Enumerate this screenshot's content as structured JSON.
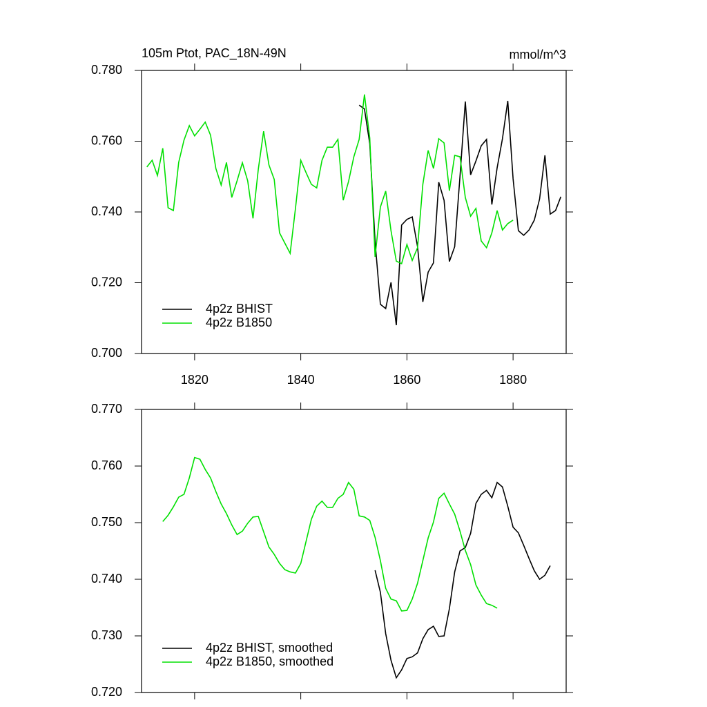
{
  "chart_data": [
    {
      "type": "line",
      "title": "105m Ptot, PAC_18N-49N",
      "subtitle": "mmol/m^3",
      "xlim": [
        1810,
        1890
      ],
      "xticks": [
        1820,
        1840,
        1860,
        1880
      ],
      "xticklabels": true,
      "ylim": [
        0.7,
        0.78
      ],
      "yticks": [
        {
          "value": 0.7,
          "label": "0.700"
        },
        {
          "value": 0.72,
          "label": "0.720"
        },
        {
          "value": 0.74,
          "label": "0.740"
        },
        {
          "value": 0.76,
          "label": "0.760"
        },
        {
          "value": 0.78,
          "label": "0.780"
        }
      ],
      "legend": "lower left",
      "series": [
        {
          "name": "4p2z BHIST",
          "color": "#000000",
          "x": [
            1851,
            1852,
            1853,
            1854,
            1855,
            1856,
            1857,
            1858,
            1859,
            1860,
            1861,
            1862,
            1863,
            1864,
            1865,
            1866,
            1867,
            1868,
            1869,
            1870,
            1871,
            1872,
            1873,
            1874,
            1875,
            1876,
            1877,
            1878,
            1879,
            1880,
            1881,
            1882,
            1883,
            1884,
            1885,
            1886,
            1887,
            1888,
            1889
          ],
          "values": [
            0.7702,
            0.7691,
            0.7593,
            0.7316,
            0.7139,
            0.7127,
            0.7201,
            0.708,
            0.7363,
            0.7379,
            0.7386,
            0.7302,
            0.7146,
            0.723,
            0.7256,
            0.7484,
            0.7433,
            0.726,
            0.7302,
            0.7501,
            0.7712,
            0.7505,
            0.7544,
            0.7587,
            0.7605,
            0.7421,
            0.7525,
            0.7607,
            0.7714,
            0.7494,
            0.7347,
            0.7334,
            0.7349,
            0.7377,
            0.7437,
            0.756,
            0.7394,
            0.7404,
            0.7443
          ]
        },
        {
          "name": "4p2z B1850",
          "color": "#00e000",
          "x": [
            1811,
            1812,
            1813,
            1814,
            1815,
            1816,
            1817,
            1818,
            1819,
            1820,
            1821,
            1822,
            1823,
            1824,
            1825,
            1826,
            1827,
            1828,
            1829,
            1830,
            1831,
            1832,
            1833,
            1834,
            1835,
            1836,
            1837,
            1838,
            1839,
            1840,
            1841,
            1842,
            1843,
            1844,
            1845,
            1846,
            1847,
            1848,
            1849,
            1850,
            1851,
            1852,
            1853,
            1854,
            1855,
            1856,
            1857,
            1858,
            1859,
            1860,
            1861,
            1862,
            1863,
            1864,
            1865,
            1866,
            1867,
            1868,
            1869,
            1870,
            1871,
            1872,
            1873,
            1874,
            1875,
            1876,
            1877,
            1878,
            1879,
            1880
          ],
          "values": [
            0.7527,
            0.7546,
            0.7503,
            0.758,
            0.7412,
            0.7404,
            0.754,
            0.7603,
            0.7644,
            0.7615,
            0.7634,
            0.7654,
            0.7617,
            0.7523,
            0.7476,
            0.754,
            0.7441,
            0.7488,
            0.7539,
            0.7488,
            0.7382,
            0.7521,
            0.7628,
            0.7533,
            0.7492,
            0.7341,
            0.7312,
            0.7283,
            0.741,
            0.7546,
            0.7511,
            0.7478,
            0.7468,
            0.7546,
            0.7583,
            0.7583,
            0.7605,
            0.7433,
            0.7486,
            0.7556,
            0.7605,
            0.7732,
            0.7609,
            0.7273,
            0.7414,
            0.7459,
            0.7347,
            0.7261,
            0.7254,
            0.7308,
            0.7263,
            0.7299,
            0.7478,
            0.7574,
            0.7523,
            0.7607,
            0.7595,
            0.746,
            0.756,
            0.7556,
            0.7441,
            0.7388,
            0.741,
            0.7318,
            0.7299,
            0.7341,
            0.7404,
            0.7349,
            0.7367,
            0.7377
          ]
        }
      ]
    },
    {
      "type": "line",
      "xlim": [
        1810,
        1890
      ],
      "xticks": [
        1820,
        1840,
        1860,
        1880
      ],
      "xticklabels": false,
      "ylim": [
        0.72,
        0.77
      ],
      "yticks": [
        {
          "value": 0.72,
          "label": "0.720"
        },
        {
          "value": 0.73,
          "label": "0.730"
        },
        {
          "value": 0.74,
          "label": "0.740"
        },
        {
          "value": 0.75,
          "label": "0.750"
        },
        {
          "value": 0.76,
          "label": "0.760"
        },
        {
          "value": 0.77,
          "label": "0.770"
        }
      ],
      "legend": "lower left",
      "series": [
        {
          "name": "4p2z BHIST, smoothed",
          "color": "#000000",
          "x": [
            1854,
            1855,
            1856,
            1857,
            1858,
            1859,
            1860,
            1861,
            1862,
            1863,
            1864,
            1865,
            1866,
            1867,
            1868,
            1869,
            1870,
            1871,
            1872,
            1873,
            1874,
            1875,
            1876,
            1877,
            1878,
            1879,
            1880,
            1881,
            1882,
            1883,
            1884,
            1885,
            1886,
            1887
          ],
          "values": [
            0.7416,
            0.7377,
            0.7304,
            0.7257,
            0.7226,
            0.724,
            0.726,
            0.7263,
            0.727,
            0.7295,
            0.7311,
            0.7317,
            0.7299,
            0.73,
            0.7348,
            0.7413,
            0.745,
            0.7456,
            0.7481,
            0.7534,
            0.755,
            0.7557,
            0.7544,
            0.7571,
            0.7563,
            0.7529,
            0.7492,
            0.7482,
            0.746,
            0.7437,
            0.7415,
            0.74,
            0.7407,
            0.7424
          ]
        },
        {
          "name": "4p2z B1850, smoothed",
          "color": "#00e000",
          "x": [
            1814,
            1815,
            1816,
            1817,
            1818,
            1819,
            1820,
            1821,
            1822,
            1823,
            1824,
            1825,
            1826,
            1827,
            1828,
            1829,
            1830,
            1831,
            1832,
            1833,
            1834,
            1835,
            1836,
            1837,
            1838,
            1839,
            1840,
            1841,
            1842,
            1843,
            1844,
            1845,
            1846,
            1847,
            1848,
            1849,
            1850,
            1851,
            1852,
            1853,
            1854,
            1855,
            1856,
            1857,
            1858,
            1859,
            1860,
            1861,
            1862,
            1863,
            1864,
            1865,
            1866,
            1867,
            1868,
            1869,
            1870,
            1871,
            1872,
            1873,
            1874,
            1875,
            1876,
            1877
          ],
          "values": [
            0.7502,
            0.7513,
            0.7528,
            0.7545,
            0.755,
            0.7579,
            0.7615,
            0.7612,
            0.7594,
            0.7579,
            0.7555,
            0.7533,
            0.7516,
            0.7496,
            0.7479,
            0.7485,
            0.7499,
            0.751,
            0.7511,
            0.7484,
            0.7457,
            0.7444,
            0.7428,
            0.7417,
            0.7413,
            0.7411,
            0.7428,
            0.7467,
            0.7506,
            0.7529,
            0.7538,
            0.7527,
            0.7527,
            0.7543,
            0.755,
            0.7571,
            0.7559,
            0.7512,
            0.751,
            0.7504,
            0.7474,
            0.7433,
            0.7384,
            0.7365,
            0.7362,
            0.7344,
            0.7345,
            0.7365,
            0.7393,
            0.7433,
            0.7473,
            0.7501,
            0.7543,
            0.7552,
            0.7533,
            0.7515,
            0.7485,
            0.7451,
            0.7426,
            0.739,
            0.7372,
            0.7357,
            0.7354,
            0.7349
          ]
        }
      ]
    }
  ]
}
